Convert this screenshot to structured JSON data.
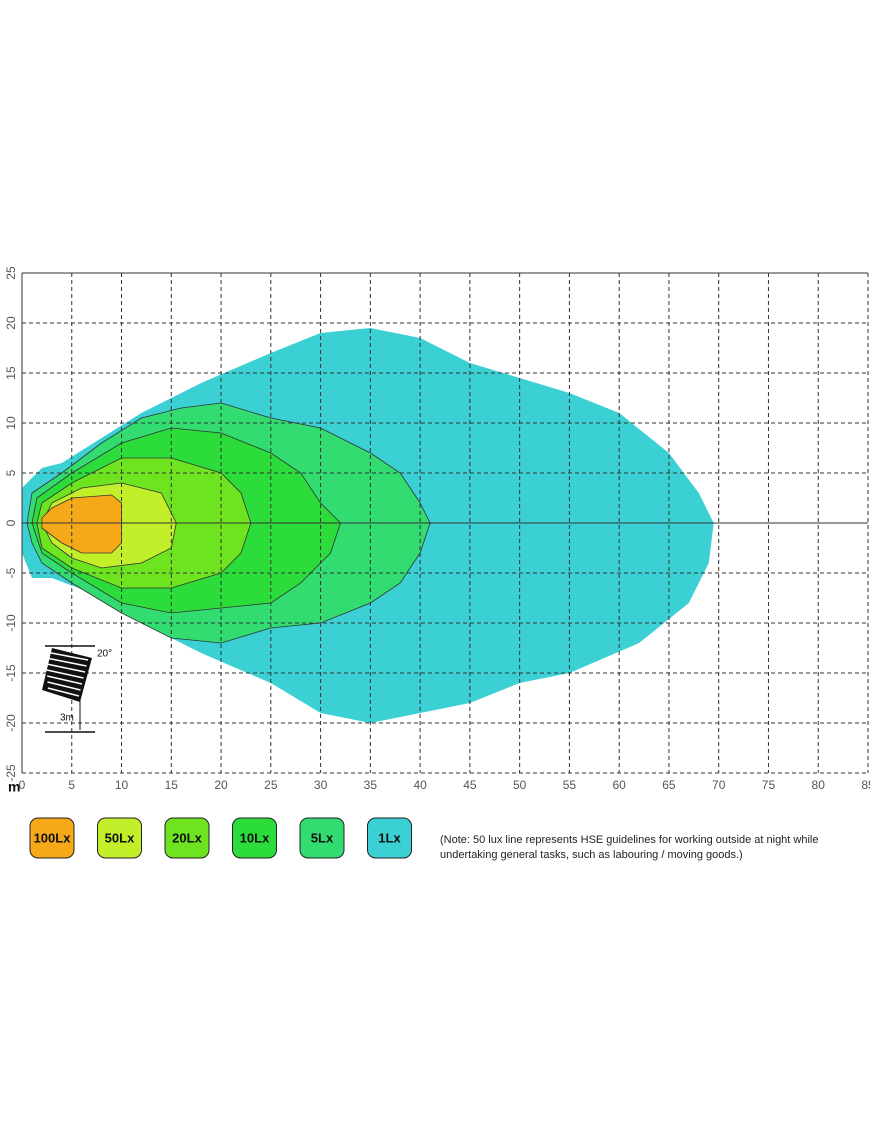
{
  "chart_data": {
    "type": "isolux",
    "x_unit": "m",
    "xlim": [
      0,
      85
    ],
    "ylim": [
      -25,
      25
    ],
    "xticks": [
      0,
      5,
      10,
      15,
      20,
      25,
      30,
      35,
      40,
      45,
      50,
      55,
      60,
      65,
      70,
      75,
      80,
      85
    ],
    "yticks": [
      -25,
      -20,
      -15,
      -10,
      -5,
      0,
      5,
      10,
      15,
      20,
      25
    ],
    "grid": true,
    "annotations": [
      "20°",
      "3m"
    ],
    "note": [
      "(Note: 50 lux line represents HSE guidelines for working outside at night while",
      "undertaking general tasks, such as labouring / moving goods.)"
    ],
    "series": [
      {
        "name": "100Lx",
        "color": "#f5a818",
        "x": [
          3,
          5,
          9,
          10,
          10,
          9,
          6,
          4,
          2,
          2
        ],
        "y": [
          1.5,
          2.5,
          2.8,
          2,
          -2,
          -3,
          -3,
          -2,
          -0.5,
          0.5
        ]
      },
      {
        "name": "50Lx",
        "color": "#c2ee2a",
        "x": [
          3,
          6,
          10,
          14,
          15.5,
          15,
          12,
          8,
          5,
          3,
          2
        ],
        "y": [
          2,
          3.5,
          4,
          3,
          0,
          -2.5,
          -4,
          -4.5,
          -3.5,
          -2,
          0
        ]
      },
      {
        "name": "20Lx",
        "color": "#6ee420",
        "x": [
          2,
          5,
          10,
          15,
          20,
          22,
          23,
          22,
          20,
          15,
          10,
          5,
          2,
          1.5
        ],
        "y": [
          2,
          4,
          6.5,
          6.5,
          5,
          3,
          0,
          -3,
          -5,
          -6.5,
          -6.5,
          -4.5,
          -2.5,
          0
        ]
      },
      {
        "name": "10Lx",
        "color": "#2cdc3a",
        "x": [
          1.5,
          5,
          10,
          15,
          20,
          25,
          28,
          30,
          32,
          31,
          28,
          25,
          20,
          15,
          10,
          5,
          2,
          1
        ],
        "y": [
          2.5,
          5,
          8,
          9.5,
          9,
          7,
          5,
          2,
          0,
          -3,
          -6,
          -8,
          -8.5,
          -9,
          -8,
          -5,
          -3,
          0
        ]
      },
      {
        "name": "5Lx",
        "color": "#32dc70",
        "x": [
          1,
          4,
          8,
          12,
          16,
          20,
          25,
          30,
          35,
          38,
          40,
          41,
          40,
          38,
          35,
          30,
          25,
          20,
          15,
          10,
          5,
          2,
          1,
          0.5
        ],
        "y": [
          3,
          5,
          8,
          10.5,
          11.5,
          12,
          10.5,
          9.5,
          7,
          5,
          2,
          0,
          -3,
          -6,
          -8,
          -10,
          -10.5,
          -12,
          -11.5,
          -9,
          -6,
          -4,
          -2,
          0
        ]
      },
      {
        "name": "1Lx",
        "color": "#3ad0d4",
        "x": [
          0,
          2,
          4,
          8,
          12,
          18,
          25,
          30,
          35,
          40,
          45,
          50,
          55,
          60,
          65,
          68,
          69.5,
          69,
          67,
          62,
          55,
          50,
          45,
          40,
          35,
          30,
          25,
          18,
          12,
          7,
          3,
          1,
          0,
          0
        ],
        "y": [
          3.5,
          5.5,
          6,
          8.5,
          11,
          14,
          17,
          19,
          19.5,
          18.5,
          16,
          14.5,
          13,
          11,
          7,
          3,
          0,
          -4,
          -8,
          -12,
          -15,
          -16,
          -18,
          -19,
          -20,
          -19,
          -16,
          -13,
          -10,
          -7,
          -5.5,
          -5.5,
          -3,
          0
        ]
      }
    ]
  }
}
